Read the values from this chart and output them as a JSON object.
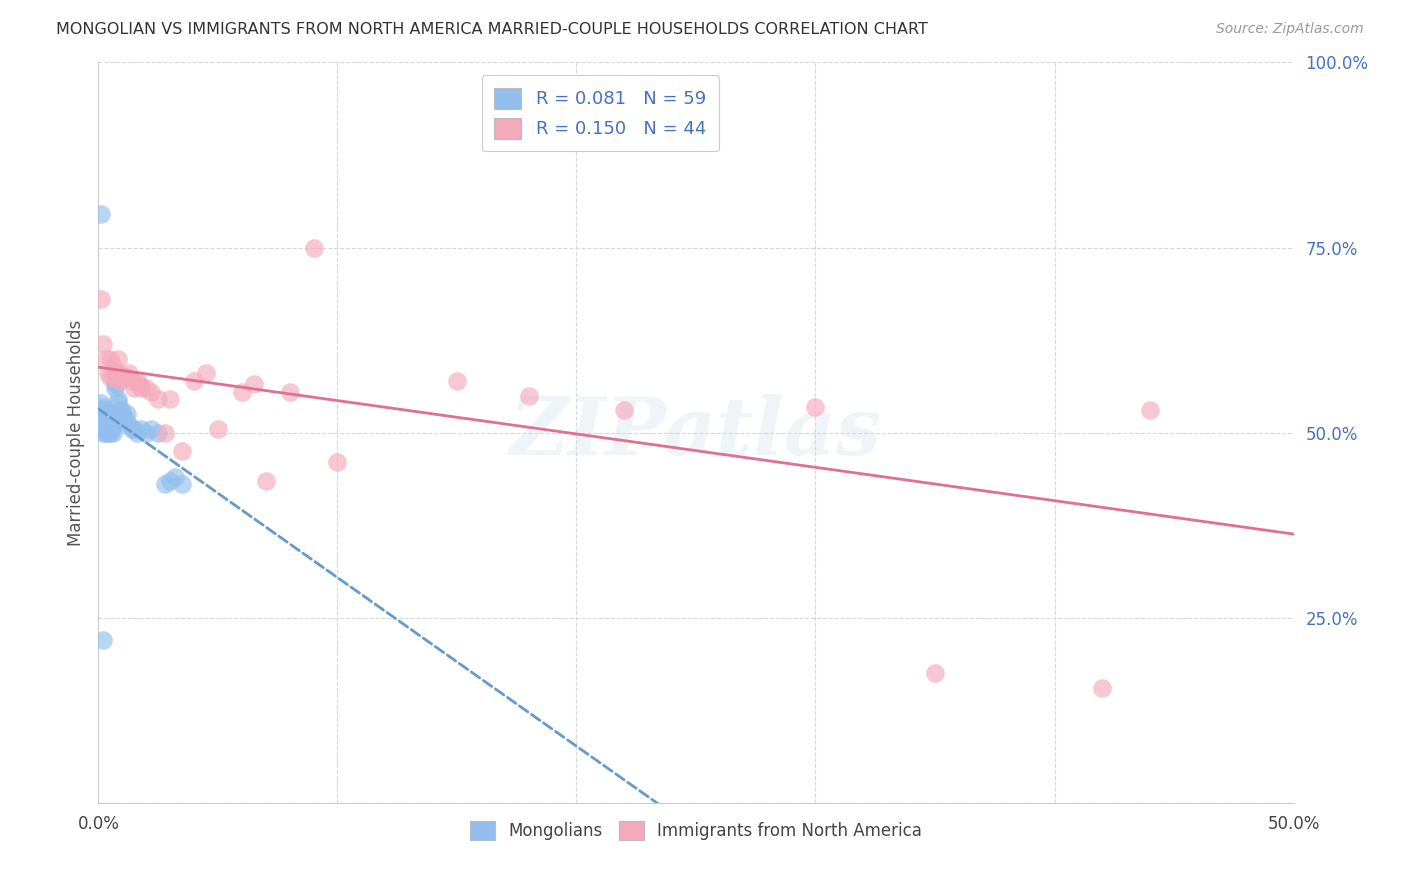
{
  "title": "MONGOLIAN VS IMMIGRANTS FROM NORTH AMERICA MARRIED-COUPLE HOUSEHOLDS CORRELATION CHART",
  "source": "Source: ZipAtlas.com",
  "ylabel": "Married-couple Households",
  "xlim": [
    0.0,
    0.5
  ],
  "ylim": [
    0.0,
    1.0
  ],
  "yticks": [
    0.0,
    0.25,
    0.5,
    0.75,
    1.0
  ],
  "ytick_labels": [
    "",
    "25.0%",
    "50.0%",
    "75.0%",
    "100.0%"
  ],
  "xticks": [
    0.0,
    0.1,
    0.2,
    0.3,
    0.4,
    0.5
  ],
  "xtick_labels": [
    "0.0%",
    "",
    "",
    "",
    "",
    "50.0%"
  ],
  "blue_color": "#92BFED",
  "pink_color": "#F4AABB",
  "blue_line_color": "#6699CC",
  "pink_line_color": "#E07090",
  "label1": "Mongolians",
  "label2": "Immigrants from North America",
  "blue_x": [
    0.001,
    0.001,
    0.001,
    0.001,
    0.002,
    0.002,
    0.002,
    0.002,
    0.002,
    0.002,
    0.003,
    0.003,
    0.003,
    0.003,
    0.003,
    0.003,
    0.003,
    0.004,
    0.004,
    0.004,
    0.004,
    0.004,
    0.005,
    0.005,
    0.005,
    0.005,
    0.005,
    0.005,
    0.006,
    0.006,
    0.006,
    0.006,
    0.007,
    0.007,
    0.007,
    0.008,
    0.008,
    0.009,
    0.009,
    0.009,
    0.01,
    0.01,
    0.01,
    0.011,
    0.012,
    0.013,
    0.014,
    0.015,
    0.016,
    0.018,
    0.02,
    0.022,
    0.025,
    0.028,
    0.03,
    0.032,
    0.035,
    0.001,
    0.002
  ],
  "blue_y": [
    0.51,
    0.52,
    0.53,
    0.54,
    0.5,
    0.515,
    0.52,
    0.525,
    0.53,
    0.535,
    0.5,
    0.505,
    0.51,
    0.515,
    0.52,
    0.525,
    0.53,
    0.5,
    0.505,
    0.515,
    0.52,
    0.525,
    0.5,
    0.505,
    0.51,
    0.515,
    0.52,
    0.525,
    0.5,
    0.505,
    0.51,
    0.515,
    0.56,
    0.565,
    0.57,
    0.54,
    0.545,
    0.52,
    0.525,
    0.53,
    0.52,
    0.525,
    0.53,
    0.52,
    0.525,
    0.51,
    0.505,
    0.505,
    0.5,
    0.505,
    0.5,
    0.505,
    0.5,
    0.43,
    0.435,
    0.44,
    0.43,
    0.795,
    0.22
  ],
  "pink_x": [
    0.001,
    0.002,
    0.003,
    0.004,
    0.005,
    0.005,
    0.006,
    0.006,
    0.007,
    0.008,
    0.008,
    0.009,
    0.01,
    0.011,
    0.012,
    0.013,
    0.014,
    0.015,
    0.016,
    0.017,
    0.018,
    0.02,
    0.022,
    0.025,
    0.028,
    0.03,
    0.035,
    0.04,
    0.045,
    0.05,
    0.06,
    0.065,
    0.07,
    0.08,
    0.09,
    0.1,
    0.15,
    0.18,
    0.2,
    0.22,
    0.3,
    0.35,
    0.42,
    0.44
  ],
  "pink_y": [
    0.68,
    0.62,
    0.6,
    0.58,
    0.575,
    0.6,
    0.575,
    0.59,
    0.58,
    0.58,
    0.6,
    0.57,
    0.575,
    0.575,
    0.575,
    0.58,
    0.57,
    0.56,
    0.57,
    0.565,
    0.56,
    0.56,
    0.555,
    0.545,
    0.5,
    0.545,
    0.475,
    0.57,
    0.58,
    0.505,
    0.555,
    0.565,
    0.435,
    0.555,
    0.75,
    0.46,
    0.57,
    0.55,
    0.96,
    0.53,
    0.535,
    0.175,
    0.155,
    0.53
  ],
  "watermark": "ZIPatlas",
  "background_color": "#ffffff",
  "grid_color": "#d8d8d8"
}
